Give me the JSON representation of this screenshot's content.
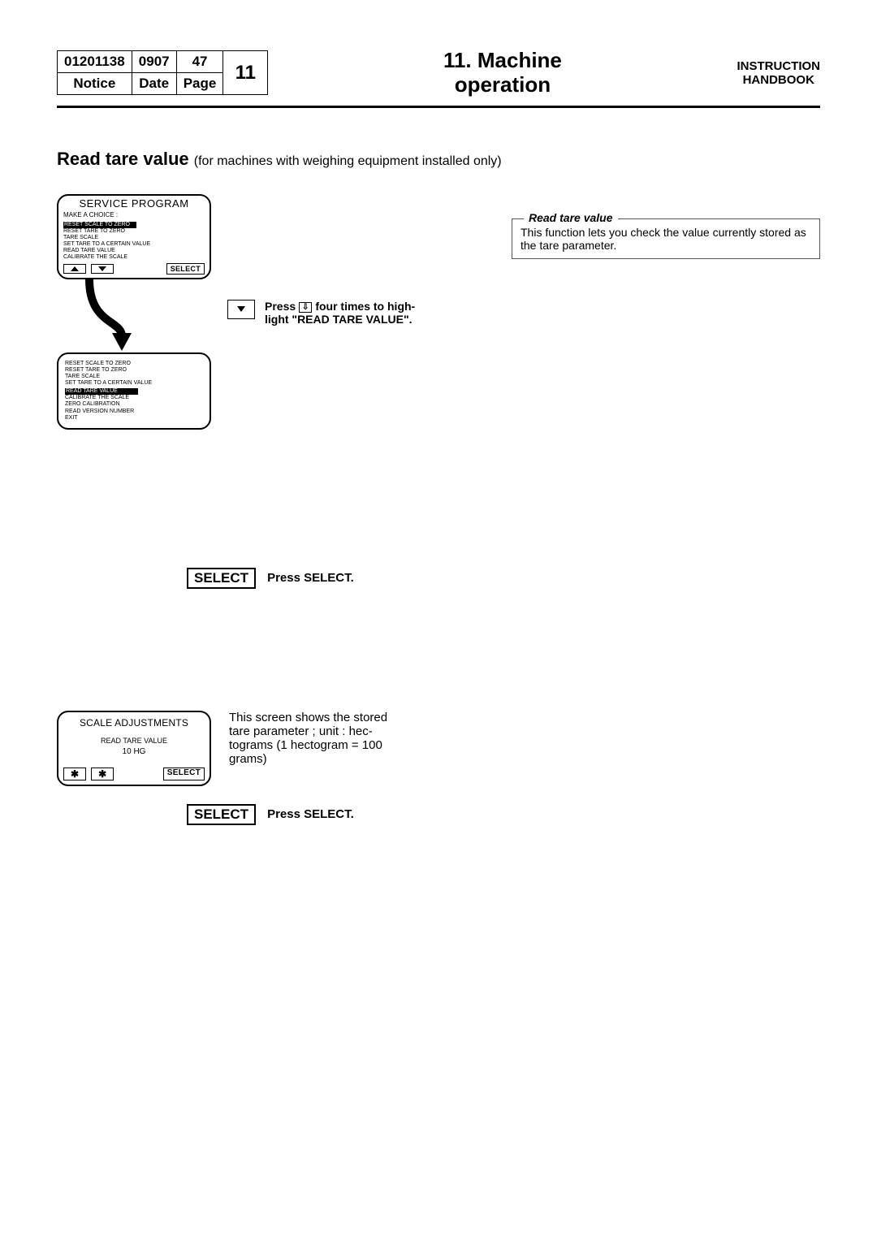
{
  "header": {
    "notice_no": "01201138",
    "date": "0907",
    "page": "47",
    "chapter": "11",
    "notice_label": "Notice",
    "date_label": "Date",
    "page_label": "Page",
    "title_line1": "11. Machine",
    "title_line2": "operation",
    "right_line1": "INSTRUCTION",
    "right_line2": "HANDBOOK"
  },
  "section": {
    "title_bold": "Read tare value",
    "title_sub": "(for machines with weighing equipment installed only)"
  },
  "panel1": {
    "title": "SERVICE PROGRAM",
    "subtitle": "MAKE A CHOICE :",
    "items": [
      "RESET SCALE TO ZERO",
      "RESET TARE TO ZERO",
      "TARE SCALE",
      "SET TARE TO A CERTAIN VALUE",
      "READ TARE VALUE",
      "CALIBRATE THE SCALE"
    ],
    "highlighted_index": 0,
    "select_label": "SELECT"
  },
  "step1": {
    "press": "Press",
    "four_times": " four times to high-light \"READ TARE VALUE\"."
  },
  "panel2list": {
    "items": [
      "RESET SCALE TO ZERO",
      "RESET TARE TO ZERO",
      "TARE SCALE",
      "SET TARE TO A CERTAIN VALUE",
      "READ TARE VALUE",
      "CALIBRATE THE SCALE",
      "ZERO CALIBRATION",
      "READ VERSION NUMBER",
      "EXIT"
    ],
    "highlighted_index": 4
  },
  "infobox": {
    "title": "Read tare value",
    "body": "This function lets you check the value currently stored as the tare parameter."
  },
  "select_step": {
    "button": "SELECT",
    "text": "Press SELECT."
  },
  "scale_panel": {
    "title": "SCALE ADJUSTMENTS",
    "sub": "READ TARE VALUE",
    "value": "10 HG",
    "star": "✱",
    "select_label": "SELECT"
  },
  "scale_desc": "This screen shows the stored tare parameter ; unit : hec-tograms (1 hectogram = 100 grams)",
  "select_step2": {
    "button": "SELECT",
    "text": "Press SELECT."
  }
}
